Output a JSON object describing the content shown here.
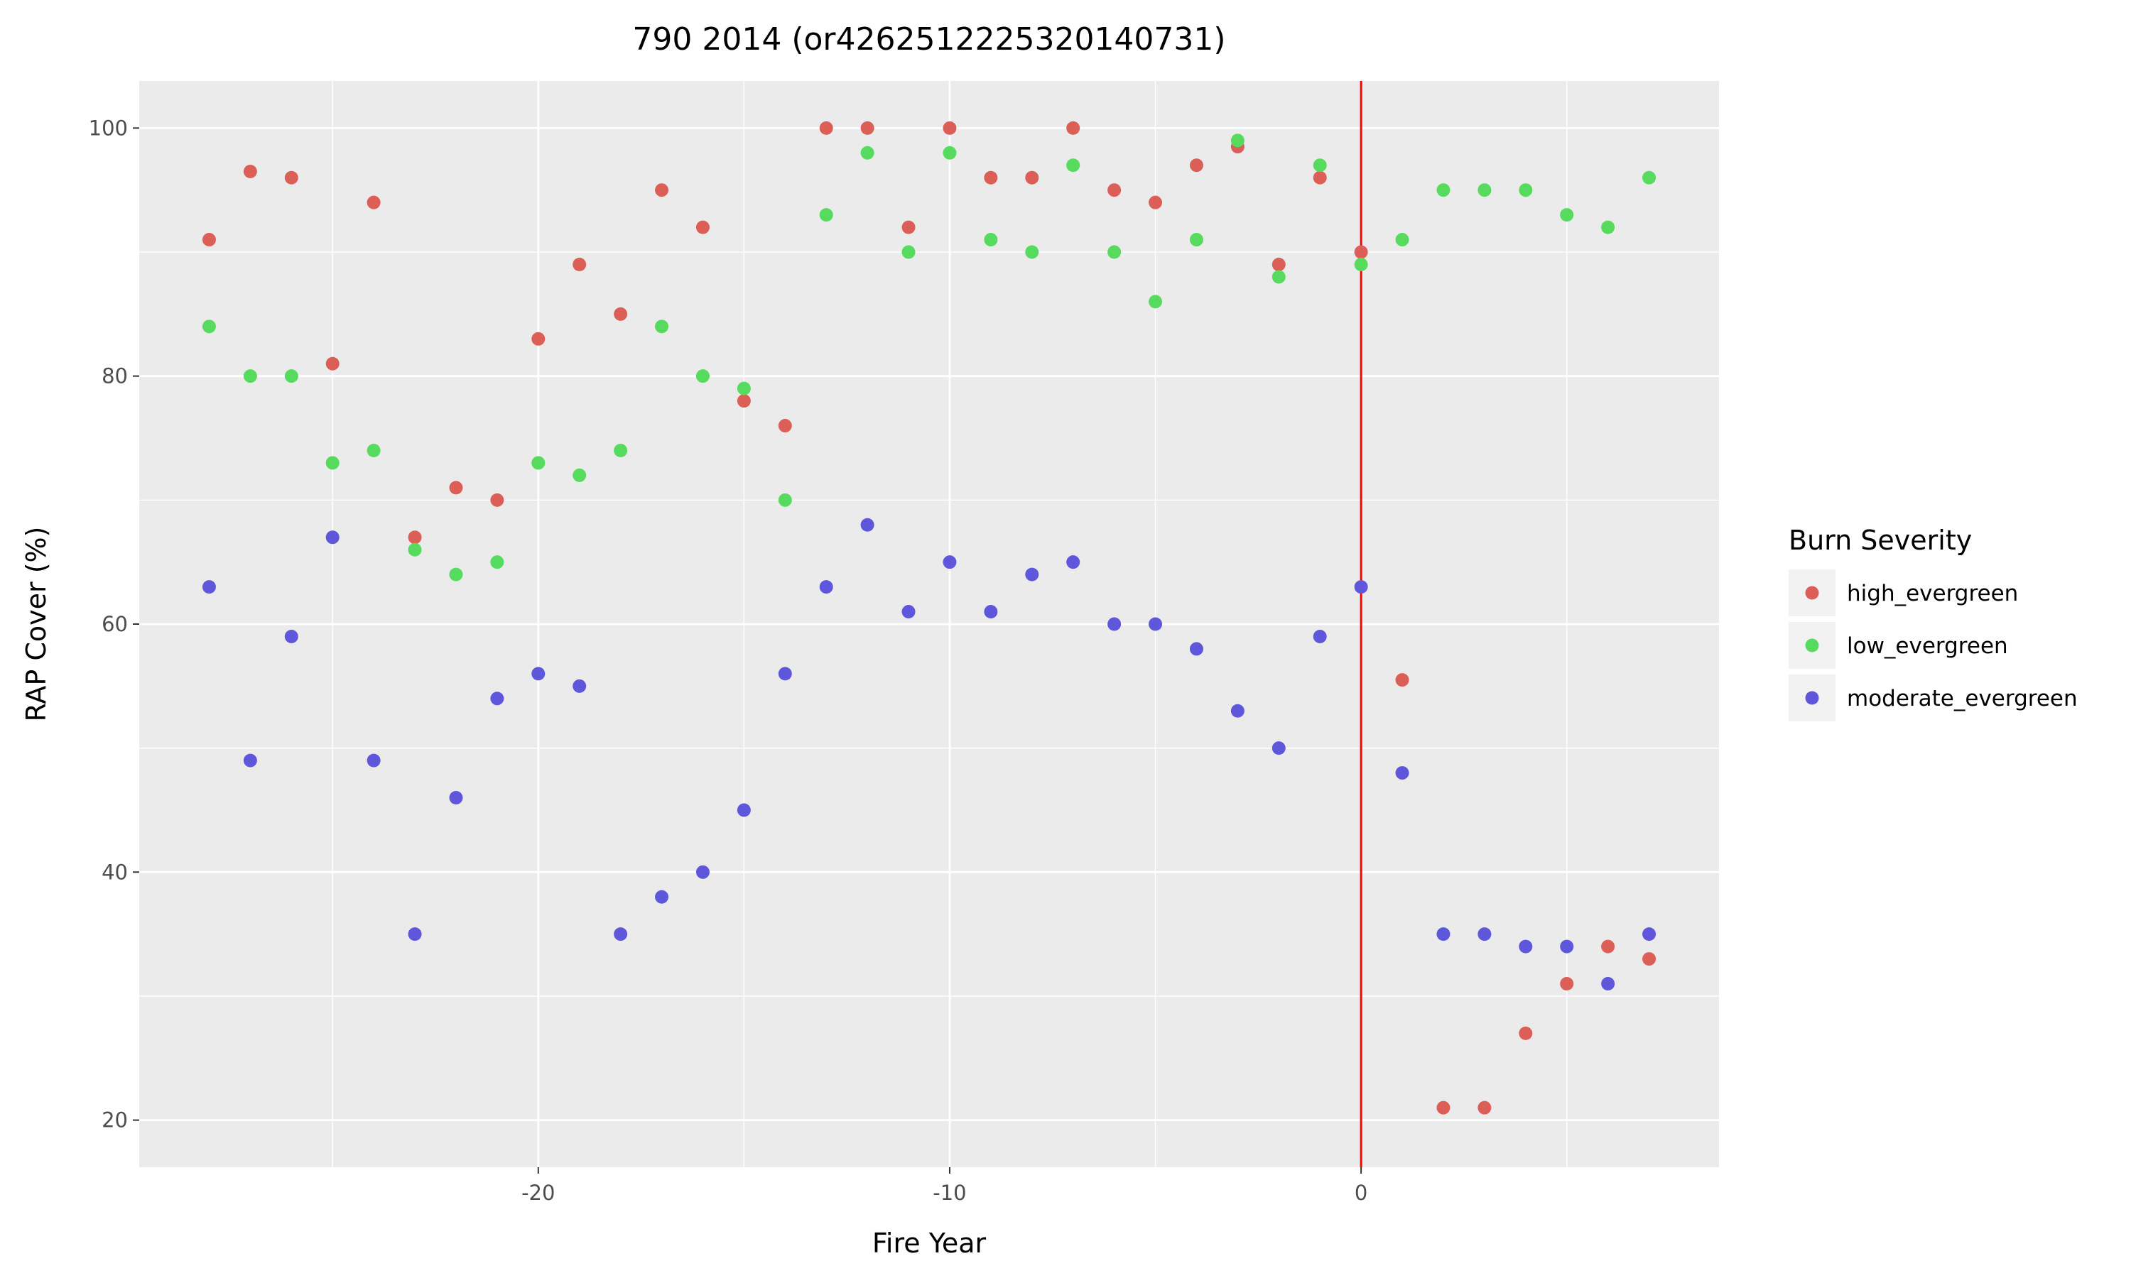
{
  "chart_data": {
    "type": "scatter",
    "title": "790 2014 (or4262512225320140731)",
    "xlabel": "Fire Year",
    "ylabel": "RAP Cover (%)",
    "xlim": [
      -29.7,
      8.7
    ],
    "ylim": [
      16.2,
      103.8
    ],
    "x_ticks": [
      -20,
      -10,
      0
    ],
    "y_ticks": [
      20,
      40,
      60,
      80,
      100
    ],
    "grid": true,
    "legend_position": "right",
    "legend_title": "Burn Severity",
    "vline": {
      "x": 0,
      "color": "#ff0000"
    },
    "series": [
      {
        "name": "high_evergreen",
        "color": "#db5f57",
        "points": [
          [
            -28,
            91
          ],
          [
            -27,
            96.5
          ],
          [
            -26,
            96
          ],
          [
            -25,
            81
          ],
          [
            -24,
            94
          ],
          [
            -23,
            67
          ],
          [
            -22,
            71
          ],
          [
            -21,
            70
          ],
          [
            -20,
            83
          ],
          [
            -19,
            89
          ],
          [
            -18,
            85
          ],
          [
            -17,
            95
          ],
          [
            -16,
            92
          ],
          [
            -15,
            78
          ],
          [
            -14,
            76
          ],
          [
            -13,
            100
          ],
          [
            -12,
            100
          ],
          [
            -11,
            92
          ],
          [
            -10,
            100
          ],
          [
            -9,
            96
          ],
          [
            -8,
            96
          ],
          [
            -7,
            100
          ],
          [
            -6,
            95
          ],
          [
            -5,
            94
          ],
          [
            -4,
            97
          ],
          [
            -3,
            98.5
          ],
          [
            -2,
            89
          ],
          [
            -1,
            96
          ],
          [
            0,
            90
          ],
          [
            1,
            55.5
          ],
          [
            2,
            21
          ],
          [
            3,
            21
          ],
          [
            4,
            27
          ],
          [
            5,
            31
          ],
          [
            6,
            34
          ],
          [
            7,
            33
          ]
        ]
      },
      {
        "name": "low_evergreen",
        "color": "#57db5f",
        "points": [
          [
            -28,
            84
          ],
          [
            -27,
            80
          ],
          [
            -26,
            80
          ],
          [
            -25,
            73
          ],
          [
            -24,
            74
          ],
          [
            -23,
            66
          ],
          [
            -22,
            64
          ],
          [
            -21,
            65
          ],
          [
            -20,
            73
          ],
          [
            -19,
            72
          ],
          [
            -18,
            74
          ],
          [
            -17,
            84
          ],
          [
            -16,
            80
          ],
          [
            -15,
            79
          ],
          [
            -14,
            70
          ],
          [
            -13,
            93
          ],
          [
            -12,
            98
          ],
          [
            -11,
            90
          ],
          [
            -10,
            98
          ],
          [
            -9,
            91
          ],
          [
            -8,
            90
          ],
          [
            -7,
            97
          ],
          [
            -6,
            90
          ],
          [
            -5,
            86
          ],
          [
            -4,
            91
          ],
          [
            -3,
            99
          ],
          [
            -2,
            88
          ],
          [
            -1,
            97
          ],
          [
            0,
            89
          ],
          [
            1,
            91
          ],
          [
            2,
            95
          ],
          [
            3,
            95
          ],
          [
            4,
            95
          ],
          [
            5,
            93
          ],
          [
            6,
            92
          ],
          [
            7,
            96
          ]
        ]
      },
      {
        "name": "moderate_evergreen",
        "color": "#5f57db",
        "points": [
          [
            -28,
            63
          ],
          [
            -27,
            49
          ],
          [
            -26,
            59
          ],
          [
            -25,
            67
          ],
          [
            -24,
            49
          ],
          [
            -23,
            35
          ],
          [
            -22,
            46
          ],
          [
            -21,
            54
          ],
          [
            -20,
            56
          ],
          [
            -19,
            55
          ],
          [
            -18,
            35
          ],
          [
            -17,
            38
          ],
          [
            -16,
            40
          ],
          [
            -15,
            45
          ],
          [
            -14,
            56
          ],
          [
            -13,
            63
          ],
          [
            -12,
            68
          ],
          [
            -11,
            61
          ],
          [
            -10,
            65
          ],
          [
            -9,
            61
          ],
          [
            -8,
            64
          ],
          [
            -7,
            65
          ],
          [
            -6,
            60
          ],
          [
            -5,
            60
          ],
          [
            -4,
            58
          ],
          [
            -3,
            53
          ],
          [
            -2,
            50
          ],
          [
            -1,
            59
          ],
          [
            0,
            63
          ],
          [
            1,
            48
          ],
          [
            2,
            35
          ],
          [
            3,
            35
          ],
          [
            4,
            34
          ],
          [
            5,
            34
          ],
          [
            6,
            31
          ],
          [
            7,
            35
          ]
        ]
      }
    ]
  }
}
